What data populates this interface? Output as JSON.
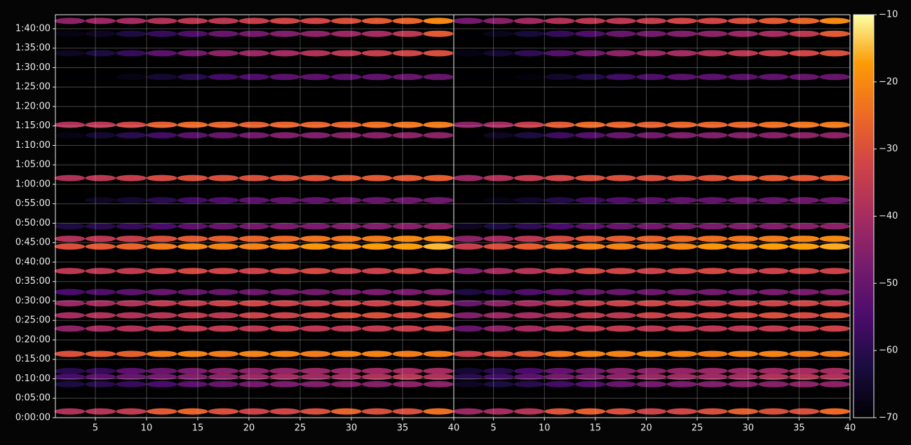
{
  "chart_data": [
    {
      "type": "heatmap",
      "colormap": "inferno",
      "grid": true,
      "ytick_labels": true,
      "xlim": [
        1.1,
        40
      ],
      "ylim": [
        0,
        6216
      ],
      "xticks": [
        5,
        10,
        15,
        20,
        25,
        30,
        35,
        40
      ],
      "yticks": [
        {
          "value": 0,
          "label": "0:00:00"
        },
        {
          "value": 300,
          "label": "0:05:00"
        },
        {
          "value": 600,
          "label": "0:10:00"
        },
        {
          "value": 900,
          "label": "0:15:00"
        },
        {
          "value": 1200,
          "label": "0:20:00"
        },
        {
          "value": 1500,
          "label": "0:25:00"
        },
        {
          "value": 1800,
          "label": "0:30:00"
        },
        {
          "value": 2100,
          "label": "0:35:00"
        },
        {
          "value": 2400,
          "label": "0:40:00"
        },
        {
          "value": 2700,
          "label": "0:45:00"
        },
        {
          "value": 3000,
          "label": "0:50:00"
        },
        {
          "value": 3300,
          "label": "0:55:00"
        },
        {
          "value": 3600,
          "label": "1:00:00"
        },
        {
          "value": 3900,
          "label": "1:05:00"
        },
        {
          "value": 4200,
          "label": "1:10:00"
        },
        {
          "value": 4500,
          "label": "1:15:00"
        },
        {
          "value": 4800,
          "label": "1:20:00"
        },
        {
          "value": 5100,
          "label": "1:25:00"
        },
        {
          "value": 5400,
          "label": "1:30:00"
        },
        {
          "value": 5700,
          "label": "1:35:00"
        },
        {
          "value": 6000,
          "label": "1:40:00"
        }
      ],
      "x": [
        2.5,
        5.5,
        8.5,
        11.5,
        14.5,
        17.5,
        20.5,
        23.5,
        26.5,
        29.5,
        32.5,
        35.5,
        38.5
      ],
      "y": [
        96,
        516,
        630,
        720,
        984,
        1374,
        1578,
        1764,
        1938,
        2262,
        2640,
        2760,
        2952,
        3354,
        3696,
        4356,
        4518,
        5256,
        5622,
        5922,
        6120
      ],
      "z": [
        [
          -38,
          -37,
          -35,
          -28,
          -26,
          -30,
          -33,
          -32,
          -30,
          -26,
          -30,
          -30,
          -24
        ],
        [
          -62,
          -60,
          -58,
          -55,
          -52,
          -50,
          -48,
          -47,
          -46,
          -45,
          -45,
          -44,
          -44
        ],
        [
          -55,
          -52,
          -50,
          -48,
          -46,
          -44,
          -42,
          -40,
          -41,
          -40,
          -38,
          -36,
          -38
        ],
        [
          -60,
          -58,
          -52,
          -50,
          -47,
          -45,
          -44,
          -43,
          -42,
          -42,
          -41,
          -40,
          -40
        ],
        [
          -30,
          -28,
          -27,
          -22,
          -21,
          -22,
          -21,
          -21,
          -22,
          -21,
          -21,
          -22,
          -22
        ],
        [
          -44,
          -40,
          -38,
          -36,
          -35,
          -35,
          -36,
          -34,
          -36,
          -36,
          -35,
          -34,
          -33
        ],
        [
          -40,
          -38,
          -38,
          -37,
          -35,
          -36,
          -33,
          -33,
          -32,
          -30,
          -30,
          -31,
          -28
        ],
        [
          -42,
          -40,
          -38,
          -35,
          -34,
          -33,
          -32,
          -33,
          -34,
          -33,
          -33,
          -32,
          -33
        ],
        [
          -55,
          -54,
          -52,
          -50,
          -50,
          -50,
          -49,
          -48,
          -48,
          -48,
          -47,
          -47,
          -46
        ],
        [
          -36,
          -36,
          -35,
          -33,
          -31,
          -32,
          -33,
          -32,
          -31,
          -33,
          -33,
          -32,
          -33
        ],
        [
          -30,
          -28,
          -26,
          -22,
          -20,
          -21,
          -21,
          -20,
          -18,
          -19,
          -17,
          -17,
          -15
        ],
        [
          -38,
          -36,
          -34,
          -30,
          -28,
          -27,
          -26,
          -25,
          -23,
          -23,
          -22,
          -20,
          -20
        ],
        [
          -62,
          -60,
          -58,
          -55,
          -52,
          -50,
          -48,
          -47,
          -47,
          -46,
          -46,
          -45,
          -44
        ],
        [
          -70,
          -66,
          -64,
          -60,
          -56,
          -54,
          -52,
          -51,
          -51,
          -50,
          -50,
          -49,
          -49
        ],
        [
          -38,
          -36,
          -34,
          -31,
          -30,
          -30,
          -30,
          -29,
          -29,
          -28,
          -28,
          -28,
          -27
        ],
        [
          -68,
          -64,
          -60,
          -56,
          -52,
          -50,
          -48,
          -46,
          -46,
          -45,
          -45,
          -44,
          -44
        ],
        [
          -38,
          -36,
          -32,
          -27,
          -25,
          -26,
          -27,
          -26,
          -26,
          -26,
          -24,
          -23,
          -22
        ],
        [
          -70,
          -70,
          -68,
          -64,
          -60,
          -56,
          -54,
          -52,
          -52,
          -52,
          -51,
          -50,
          -50
        ],
        [
          -66,
          -62,
          -58,
          -52,
          -48,
          -44,
          -42,
          -40,
          -38,
          -36,
          -34,
          -32,
          -30
        ],
        [
          -68,
          -66,
          -62,
          -58,
          -54,
          -50,
          -48,
          -46,
          -44,
          -42,
          -40,
          -36,
          -28
        ],
        [
          -44,
          -42,
          -40,
          -38,
          -36,
          -36,
          -34,
          -32,
          -32,
          -30,
          -28,
          -26,
          -20
        ]
      ]
    },
    {
      "type": "heatmap",
      "colormap": "inferno",
      "grid": true,
      "ytick_labels": false,
      "xlim": [
        1.1,
        40
      ],
      "ylim": [
        0,
        6216
      ],
      "xticks": [
        5,
        10,
        15,
        20,
        25,
        30,
        35,
        40
      ],
      "yticks": [
        0,
        300,
        600,
        900,
        1200,
        1500,
        1800,
        2100,
        2400,
        2700,
        3000,
        3300,
        3600,
        3900,
        4200,
        4500,
        4800,
        5100,
        5400,
        5700,
        6000
      ],
      "x": [
        2.5,
        5.5,
        8.5,
        11.5,
        14.5,
        17.5,
        20.5,
        23.5,
        26.5,
        29.5,
        32.5,
        35.5,
        38.5
      ],
      "y": [
        96,
        516,
        630,
        720,
        984,
        1374,
        1578,
        1764,
        1938,
        2262,
        2640,
        2760,
        2952,
        3354,
        3696,
        4356,
        4518,
        5256,
        5622,
        5922,
        6120
      ],
      "z": [
        [
          -42,
          -40,
          -37,
          -29,
          -27,
          -30,
          -33,
          -32,
          -30,
          -27,
          -30,
          -30,
          -25
        ],
        [
          -66,
          -62,
          -60,
          -56,
          -53,
          -50,
          -48,
          -47,
          -46,
          -45,
          -45,
          -44,
          -44
        ],
        [
          -60,
          -56,
          -52,
          -48,
          -46,
          -44,
          -42,
          -41,
          -41,
          -40,
          -38,
          -37,
          -38
        ],
        [
          -64,
          -60,
          -55,
          -51,
          -48,
          -45,
          -44,
          -43,
          -42,
          -42,
          -41,
          -40,
          -40
        ],
        [
          -34,
          -30,
          -28,
          -23,
          -21,
          -21,
          -20,
          -21,
          -22,
          -21,
          -21,
          -22,
          -22
        ],
        [
          -50,
          -44,
          -40,
          -37,
          -35,
          -35,
          -36,
          -35,
          -36,
          -36,
          -35,
          -34,
          -33
        ],
        [
          -46,
          -42,
          -40,
          -38,
          -35,
          -36,
          -33,
          -33,
          -32,
          -31,
          -30,
          -31,
          -29
        ],
        [
          -50,
          -44,
          -40,
          -36,
          -34,
          -33,
          -32,
          -33,
          -34,
          -33,
          -33,
          -32,
          -33
        ],
        [
          -62,
          -58,
          -54,
          -51,
          -50,
          -50,
          -49,
          -48,
          -48,
          -48,
          -47,
          -47,
          -46
        ],
        [
          -46,
          -40,
          -37,
          -34,
          -31,
          -32,
          -33,
          -32,
          -31,
          -33,
          -33,
          -32,
          -33
        ],
        [
          -34,
          -30,
          -27,
          -23,
          -21,
          -21,
          -21,
          -20,
          -18,
          -19,
          -17,
          -17,
          -16
        ],
        [
          -44,
          -40,
          -36,
          -31,
          -28,
          -27,
          -26,
          -25,
          -24,
          -23,
          -22,
          -21,
          -20
        ],
        [
          -66,
          -62,
          -59,
          -55,
          -52,
          -50,
          -48,
          -47,
          -47,
          -46,
          -46,
          -45,
          -44
        ],
        [
          -70,
          -68,
          -65,
          -61,
          -57,
          -54,
          -52,
          -51,
          -51,
          -50,
          -50,
          -49,
          -49
        ],
        [
          -42,
          -38,
          -35,
          -32,
          -30,
          -30,
          -30,
          -29,
          -29,
          -28,
          -28,
          -28,
          -27
        ],
        [
          -70,
          -66,
          -62,
          -57,
          -53,
          -50,
          -48,
          -46,
          -46,
          -45,
          -45,
          -44,
          -44
        ],
        [
          -44,
          -40,
          -34,
          -28,
          -25,
          -26,
          -27,
          -26,
          -26,
          -26,
          -24,
          -23,
          -22
        ],
        [
          -70,
          -70,
          -69,
          -65,
          -61,
          -56,
          -54,
          -52,
          -52,
          -52,
          -51,
          -50,
          -50
        ],
        [
          -68,
          -64,
          -59,
          -53,
          -48,
          -44,
          -42,
          -40,
          -38,
          -36,
          -34,
          -32,
          -30
        ],
        [
          -70,
          -67,
          -63,
          -58,
          -54,
          -50,
          -48,
          -46,
          -44,
          -42,
          -40,
          -36,
          -28
        ],
        [
          -48,
          -45,
          -41,
          -38,
          -36,
          -36,
          -34,
          -32,
          -32,
          -30,
          -28,
          -26,
          -20
        ]
      ]
    }
  ],
  "colorbar": {
    "lim": [
      -70,
      -10
    ],
    "ticks": [
      {
        "value": -70,
        "label": "−70"
      },
      {
        "value": -60,
        "label": "−60"
      },
      {
        "value": -50,
        "label": "−50"
      },
      {
        "value": -40,
        "label": "−40"
      },
      {
        "value": -30,
        "label": "−30"
      },
      {
        "value": -20,
        "label": "−20"
      },
      {
        "value": -10,
        "label": "−10"
      }
    ]
  }
}
